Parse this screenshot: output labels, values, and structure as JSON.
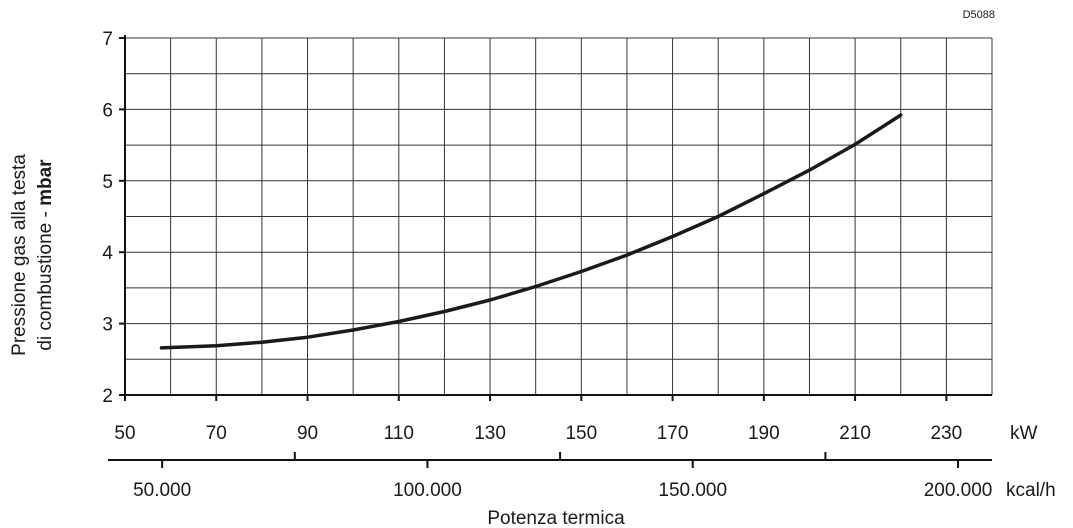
{
  "chart_data": {
    "type": "line",
    "figure_code": "D5088",
    "ylabel_line1": "Pressione gas alla testa",
    "ylabel_line2_prefix": "di combustione - ",
    "ylabel_line2_unit": "mbar",
    "xlabel": "Potenza termica",
    "x_unit": "kW",
    "x2_unit": "kcal/h",
    "xlim": [
      50,
      240
    ],
    "ylim": [
      2,
      7
    ],
    "grid": true,
    "x_ticks": [
      50,
      70,
      90,
      110,
      130,
      150,
      170,
      190,
      210,
      230
    ],
    "x_tick_labels": [
      "50",
      "70",
      "90",
      "110",
      "130",
      "150",
      "170",
      "190",
      "210",
      "230"
    ],
    "y_ticks": [
      2,
      3,
      4,
      5,
      6,
      7
    ],
    "y_tick_labels": [
      "2",
      "3",
      "4",
      "5",
      "6",
      "7"
    ],
    "x2_ticks": [
      50000,
      100000,
      150000,
      200000
    ],
    "x2_tick_labels": [
      "50.000",
      "100.000",
      "150.000",
      "200.000"
    ],
    "series": [
      {
        "x": [
          58,
          70,
          80,
          90,
          100,
          110,
          120,
          130,
          140,
          150,
          160,
          170,
          180,
          190,
          200,
          210,
          220
        ],
        "y": [
          2.66,
          2.69,
          2.74,
          2.81,
          2.91,
          3.03,
          3.17,
          3.33,
          3.52,
          3.73,
          3.96,
          4.22,
          4.5,
          4.82,
          5.15,
          5.51,
          5.92
        ]
      }
    ]
  }
}
